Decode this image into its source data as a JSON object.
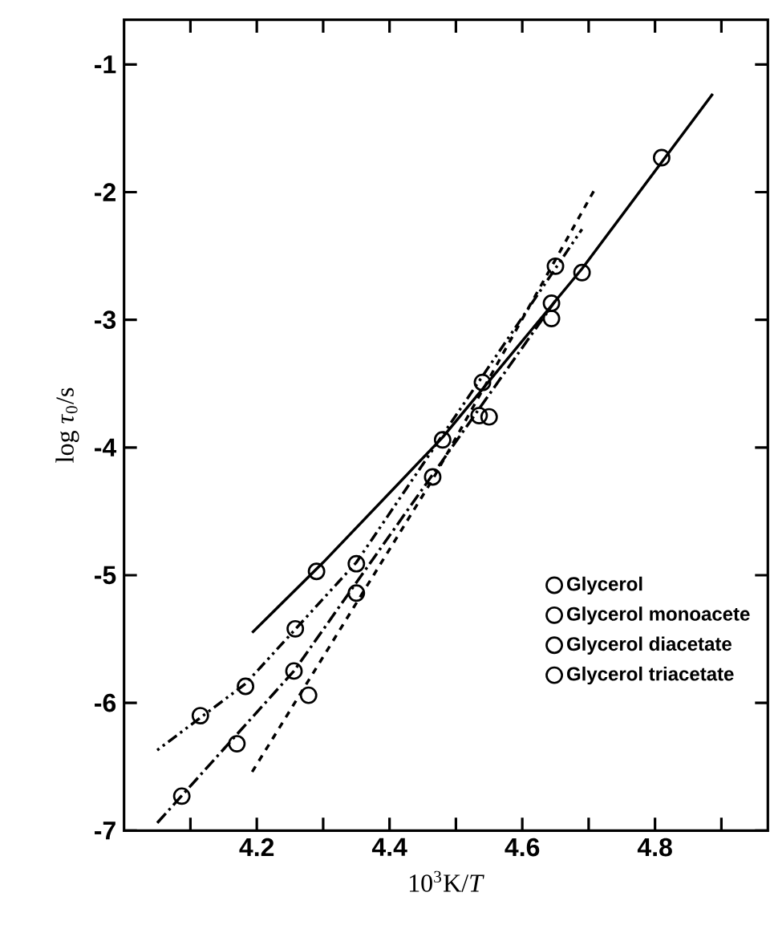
{
  "chart_data": {
    "type": "scatter",
    "xlabel": "10$^{3}$K/*T*",
    "ylabel": "log *τ*$_{0}$/s",
    "xlim": [
      4.0,
      4.97
    ],
    "ylim": [
      -7,
      -0.65
    ],
    "xticks": [
      {
        "value": 4.1,
        "label": null
      },
      4.2,
      {
        "value": 4.3,
        "label": null
      },
      4.4,
      {
        "value": 4.5,
        "label": null
      },
      4.6,
      {
        "value": 4.7,
        "label": null
      },
      4.8,
      {
        "value": 4.9,
        "label": null
      }
    ],
    "yticks": [
      -7,
      -6,
      -5,
      -4,
      -3,
      -2,
      -1
    ],
    "grid": false,
    "legend": "bottom right",
    "marker": "circle",
    "series": [
      {
        "name": "Glycerol",
        "color": "#000000",
        "x": [
          4.29,
          4.48,
          4.54,
          4.69,
          4.81
        ],
        "values": [
          -4.97,
          -3.94,
          -3.49,
          -2.63,
          -1.73
        ]
      },
      {
        "name": "Glycerol monoacete",
        "color": "#000000",
        "x": [
          4.115,
          4.183,
          4.258,
          4.35,
          4.644
        ],
        "values": [
          -6.1,
          -5.87,
          -5.42,
          -4.91,
          -2.99
        ]
      },
      {
        "name": "Glycerol diacetate",
        "color": "#000000",
        "x": [
          4.087,
          4.17,
          4.256,
          4.35,
          4.535,
          4.644
        ],
        "values": [
          -6.73,
          -6.32,
          -5.75,
          -5.14,
          -3.75,
          -2.87
        ]
      },
      {
        "name": "Glycerol triacetate",
        "color": "#000000",
        "x": [
          4.278,
          4.465,
          4.55,
          4.65
        ],
        "values": [
          -5.94,
          -4.23,
          -3.76,
          -2.58
        ]
      },
      {
        "type": "line",
        "color": "#000000",
        "line_style": "solid",
        "marker": "none",
        "x": [
          4.193,
          4.3,
          4.48,
          4.69,
          4.887
        ],
        "values": [
          -5.45,
          -4.9,
          -3.92,
          -2.6,
          -1.23
        ]
      },
      {
        "type": "line",
        "color": "#000000",
        "line_style": "dotted",
        "marker": "none",
        "x": [
          4.05,
          4.183,
          4.35,
          4.69
        ],
        "values": [
          -6.37,
          -5.85,
          -4.9,
          -2.29
        ]
      },
      {
        "type": "line",
        "color": "#000000",
        "line_style": "dashdot",
        "marker": "none",
        "x": [
          4.05,
          4.256,
          4.65
        ],
        "values": [
          -6.94,
          -5.75,
          -2.85
        ]
      },
      {
        "type": "line",
        "color": "#000000",
        "line_style": "dashed",
        "marker": "none",
        "x": [
          4.193,
          4.465,
          4.71
        ],
        "values": [
          -6.54,
          -4.25,
          -1.97
        ]
      }
    ]
  }
}
